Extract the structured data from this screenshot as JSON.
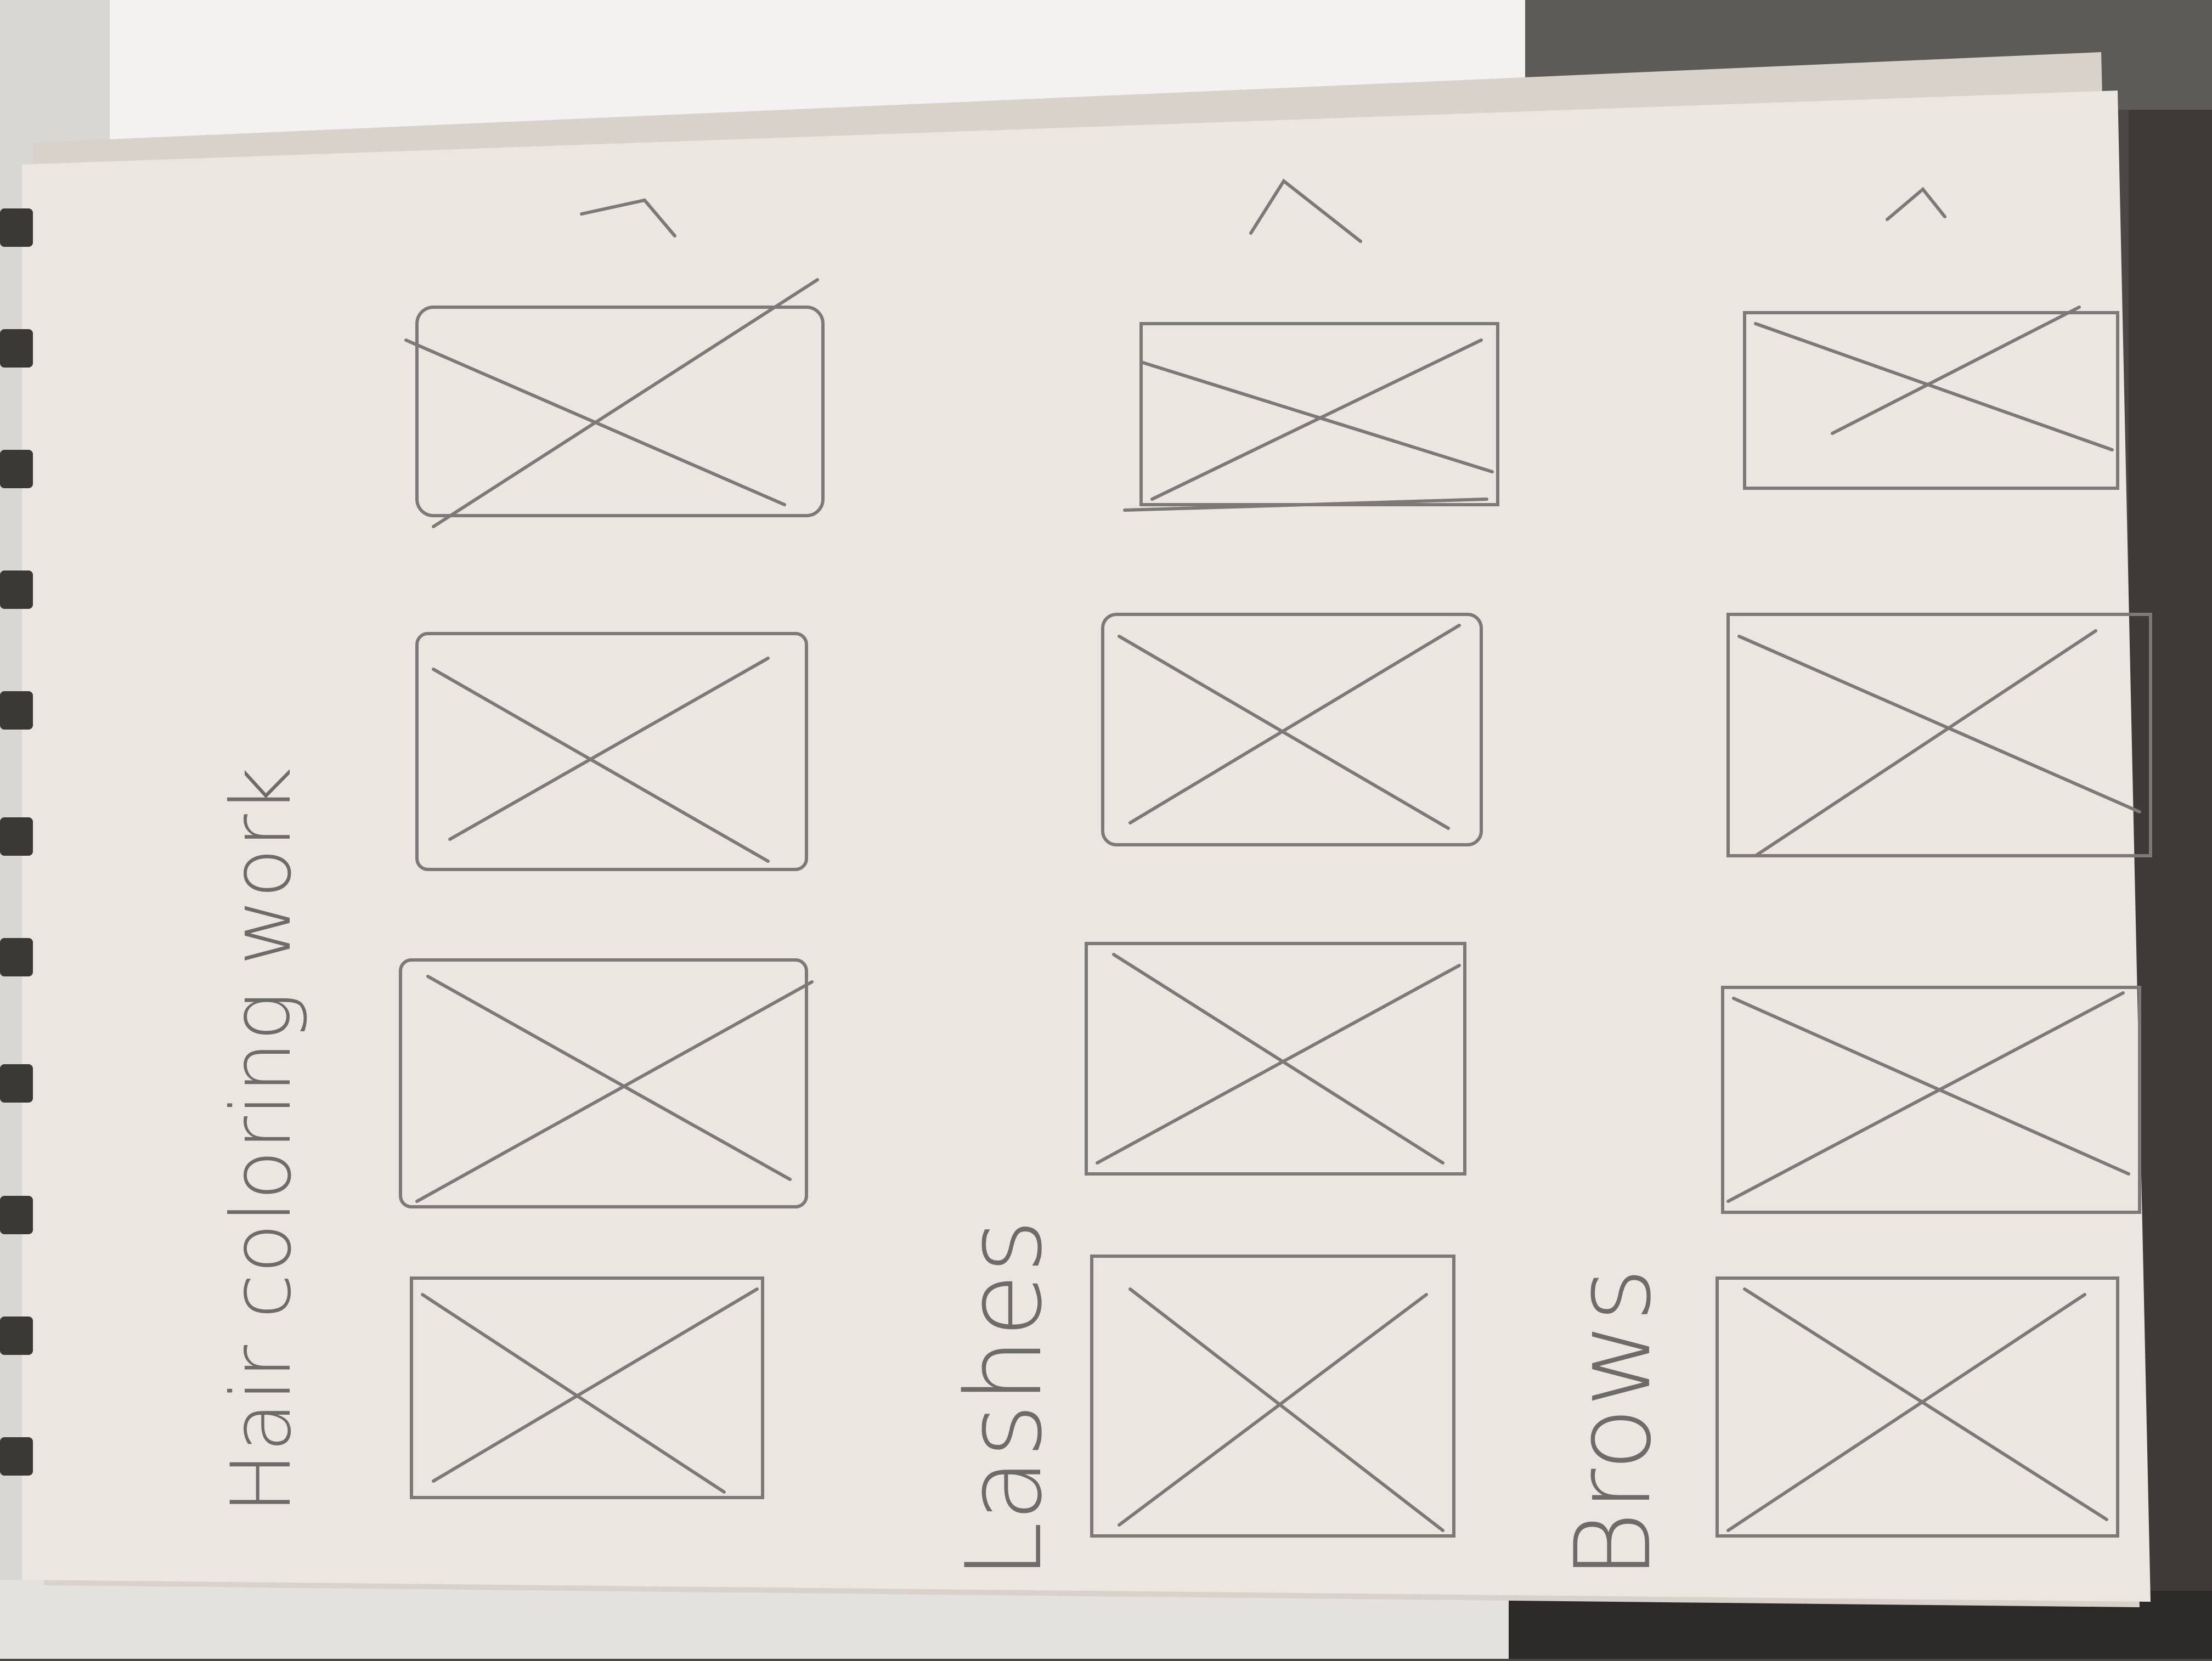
{
  "sketch": {
    "sections": [
      {
        "label": "Hair coloring work",
        "frame_count": 4,
        "has_arrow": true
      },
      {
        "label": "Lashes",
        "frame_count": 4,
        "has_arrow": true
      },
      {
        "label": "Brows",
        "frame_count": 4,
        "has_arrow": true
      }
    ]
  },
  "colors": {
    "paper": "#ebe6df",
    "pencil": "#7c7a77",
    "background": "#4a4744"
  }
}
